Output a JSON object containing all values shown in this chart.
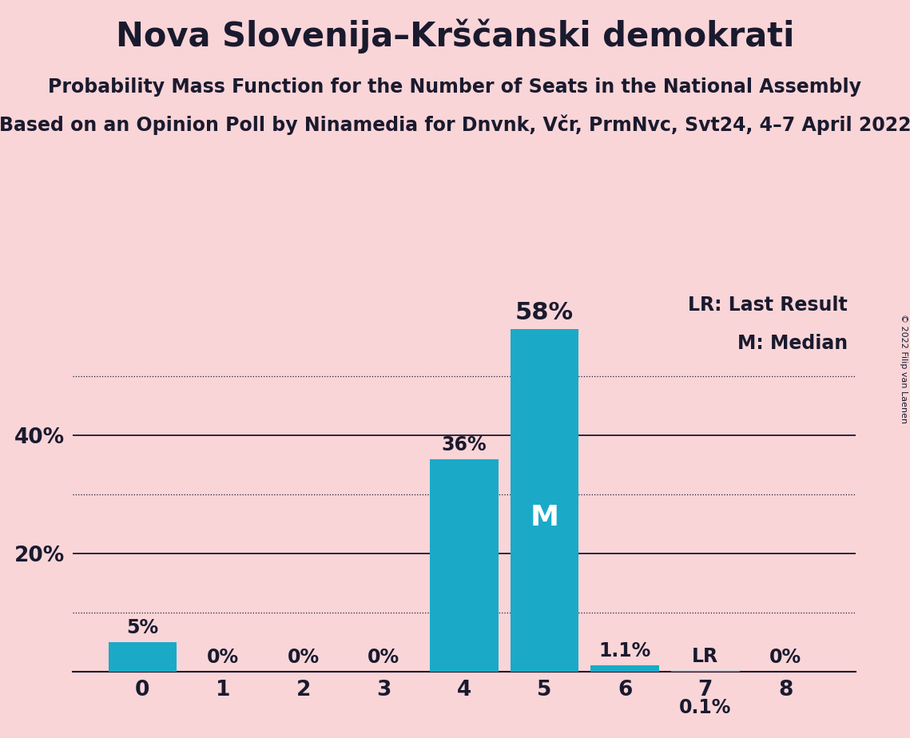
{
  "title": "Nova Slovenija–Krščanski demokrati",
  "subtitle1": "Probability Mass Function for the Number of Seats in the National Assembly",
  "subtitle2": "Based on an Opinion Poll by Ninamedia for Dnvnk, Včr, PrmNvc, Svt24, 4–7 April 2022",
  "copyright": "© 2022 Filip van Laenen",
  "categories": [
    0,
    1,
    2,
    3,
    4,
    5,
    6,
    7,
    8
  ],
  "values": [
    5.0,
    0.0,
    0.0,
    0.0,
    36.0,
    58.0,
    1.1,
    0.1,
    0.0
  ],
  "labels": [
    "5%",
    "0%",
    "0%",
    "0%",
    "36%",
    "58%",
    "1.1%",
    "0.1%",
    "0%"
  ],
  "bar_color": "#1aaac8",
  "background_color": "#f9d5d8",
  "median_bar_idx": 5,
  "lr_bar_idx": 7,
  "median_label": "M",
  "lr_label": "LR",
  "legend_lr": "LR: Last Result",
  "legend_m": "M: Median",
  "ylim": [
    0,
    65
  ],
  "dotted_lines": [
    10,
    30,
    50
  ],
  "solid_lines": [
    20,
    40
  ],
  "ytick_positions": [
    20,
    40
  ],
  "ytick_labels": [
    "20%",
    "40%"
  ],
  "title_fontsize": 30,
  "subtitle1_fontsize": 17,
  "subtitle2_fontsize": 17,
  "axis_tick_fontsize": 19,
  "bar_label_fontsize": 17,
  "big_label_fontsize": 22,
  "inside_label_fontsize": 26,
  "legend_fontsize": 17,
  "copyright_fontsize": 8,
  "text_color": "#1a1a2e"
}
